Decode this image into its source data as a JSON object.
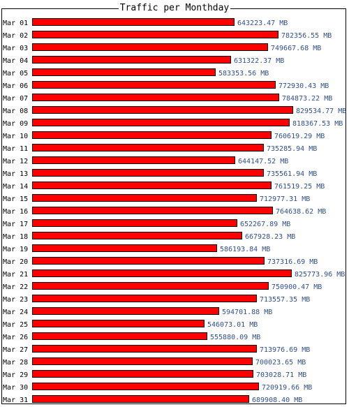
{
  "title": "Traffic per Monthday",
  "colors": {
    "bar_fill": "#ff0000",
    "bar_stroke": "#000000",
    "value_text": "#2f4f8f",
    "label_text": "#000000"
  },
  "chart_data": {
    "type": "bar",
    "orientation": "horizontal",
    "title": "Traffic per Monthday",
    "unit": "MB",
    "categories": [
      "Mar 01",
      "Mar 02",
      "Mar 03",
      "Mar 04",
      "Mar 05",
      "Mar 06",
      "Mar 07",
      "Mar 08",
      "Mar 09",
      "Mar 10",
      "Mar 11",
      "Mar 12",
      "Mar 13",
      "Mar 14",
      "Mar 15",
      "Mar 16",
      "Mar 17",
      "Mar 18",
      "Mar 19",
      "Mar 20",
      "Mar 21",
      "Mar 22",
      "Mar 23",
      "Mar 24",
      "Mar 25",
      "Mar 26",
      "Mar 27",
      "Mar 28",
      "Mar 29",
      "Mar 30",
      "Mar 31"
    ],
    "values": [
      643223.47,
      782356.55,
      749667.68,
      631322.37,
      583353.56,
      772930.43,
      784873.22,
      829534.77,
      818367.53,
      760619.29,
      735285.94,
      644147.52,
      735561.94,
      761519.25,
      712977.31,
      764638.62,
      652267.89,
      667928.23,
      586193.84,
      737316.69,
      825773.96,
      750900.47,
      713557.35,
      594701.88,
      546073.01,
      555880.09,
      713976.69,
      700023.65,
      703028.71,
      720919.66,
      689908.4
    ],
    "value_labels": [
      "643223.47 MB",
      "782356.55 MB",
      "749667.68 MB",
      "631322.37 MB",
      "583353.56 MB",
      "772930.43 MB",
      "784873.22 MB",
      "829534.77 MB",
      "818367.53 MB",
      "760619.29 MB",
      "735285.94 MB",
      "644147.52 MB",
      "735561.94 MB",
      "761519.25 MB",
      "712977.31 MB",
      "764638.62 MB",
      "652267.89 MB",
      "667928.23 MB",
      "586193.84 MB",
      "737316.69 MB",
      "825773.96 MB",
      "750900.47 MB",
      "713557.35 MB",
      "594701.88 MB",
      "546073.01 MB",
      "555880.09 MB",
      "713976.69 MB",
      "700023.65 MB",
      "703028.71 MB",
      "720919.66 MB",
      "689908.40 MB"
    ],
    "xlim": [
      0,
      829534.77
    ],
    "grid": false,
    "legend": "none"
  }
}
